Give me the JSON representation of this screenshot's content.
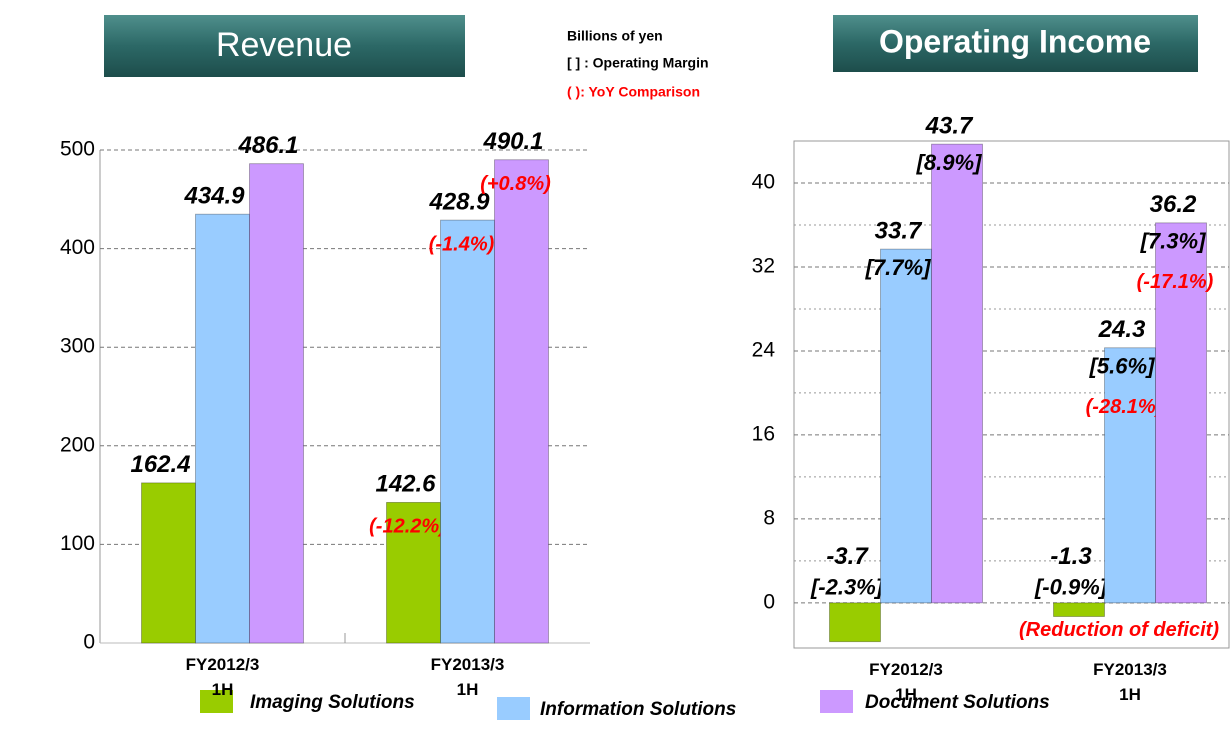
{
  "notes": [
    "Billions of yen",
    "[ ] : Operating Margin",
    "( ): YoY Comparison"
  ],
  "chart_data": [
    {
      "type": "bar",
      "title": "Revenue",
      "categories": [
        "FY2012/3\n1H",
        "FY2013/3\n1H"
      ],
      "series": [
        {
          "name": "Imaging Solutions",
          "color": "#99cc00",
          "values": [
            162.4,
            142.6
          ],
          "yoy_labels": [
            null,
            "(-12.2%)"
          ]
        },
        {
          "name": "Information Solutions",
          "color": "#99ccff",
          "values": [
            434.9,
            428.9
          ],
          "yoy_labels": [
            null,
            "(-1.4%)"
          ]
        },
        {
          "name": "Document Solutions",
          "color": "#cc99ff",
          "values": [
            486.1,
            490.1
          ],
          "yoy_labels": [
            null,
            "(+0.8%)"
          ]
        }
      ],
      "ylim": [
        0,
        500
      ],
      "yticks": [
        0,
        100,
        200,
        300,
        400,
        500
      ],
      "grid": true
    },
    {
      "type": "bar",
      "title": "Operating Income",
      "categories": [
        "FY2012/3\n1H",
        "FY2013/3\n1H"
      ],
      "series": [
        {
          "name": "Imaging Solutions",
          "color": "#99cc00",
          "values": [
            -3.7,
            -1.3
          ],
          "margin_labels": [
            "[-2.3%]",
            "[-0.9%]"
          ],
          "yoy_labels": [
            null,
            "(Reduction of deficit)"
          ]
        },
        {
          "name": "Information Solutions",
          "color": "#99ccff",
          "values": [
            33.7,
            24.3
          ],
          "margin_labels": [
            "[7.7%]",
            "[5.6%]"
          ],
          "yoy_labels": [
            null,
            "(-28.1%)"
          ]
        },
        {
          "name": "Document Solutions",
          "color": "#cc99ff",
          "values": [
            43.7,
            36.2
          ],
          "margin_labels": [
            "[8.9%]",
            "[7.3%]"
          ],
          "yoy_labels": [
            null,
            "(-17.1%)"
          ]
        }
      ],
      "ylim": [
        -4.3,
        44
      ],
      "yticks": [
        0,
        8,
        16,
        24,
        32,
        40
      ],
      "minor_yticks": [
        4,
        12,
        20,
        28,
        36
      ],
      "grid": true
    }
  ]
}
